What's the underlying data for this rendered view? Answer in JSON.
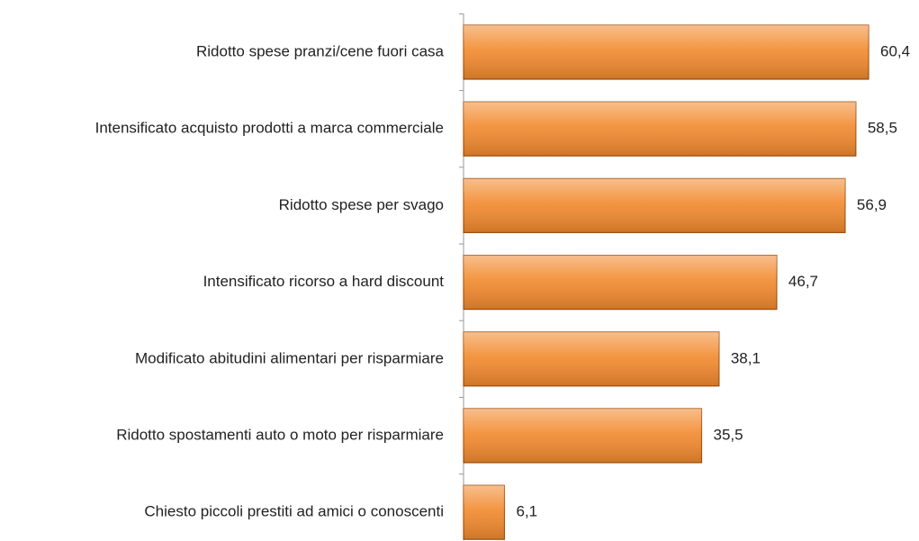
{
  "chart_data": {
    "type": "bar",
    "orientation": "horizontal",
    "categories": [
      "Ridotto spese pranzi/cene fuori casa",
      "Intensificato acquisto prodotti a marca commerciale",
      "Ridotto spese per svago",
      "Intensificato ricorso a hard discount",
      "Modificato abitudini alimentari per risparmiare",
      "Ridotto spostamenti auto o moto per risparmiare",
      "Chiesto piccoli prestiti ad amici o conoscenti"
    ],
    "values": [
      60.4,
      58.5,
      56.9,
      46.7,
      38.1,
      35.5,
      6.1
    ],
    "value_labels": [
      "60,4",
      "58,5",
      "56,9",
      "46,7",
      "38,1",
      "35,5",
      "6,1"
    ],
    "color": "#f28a2e"
  }
}
